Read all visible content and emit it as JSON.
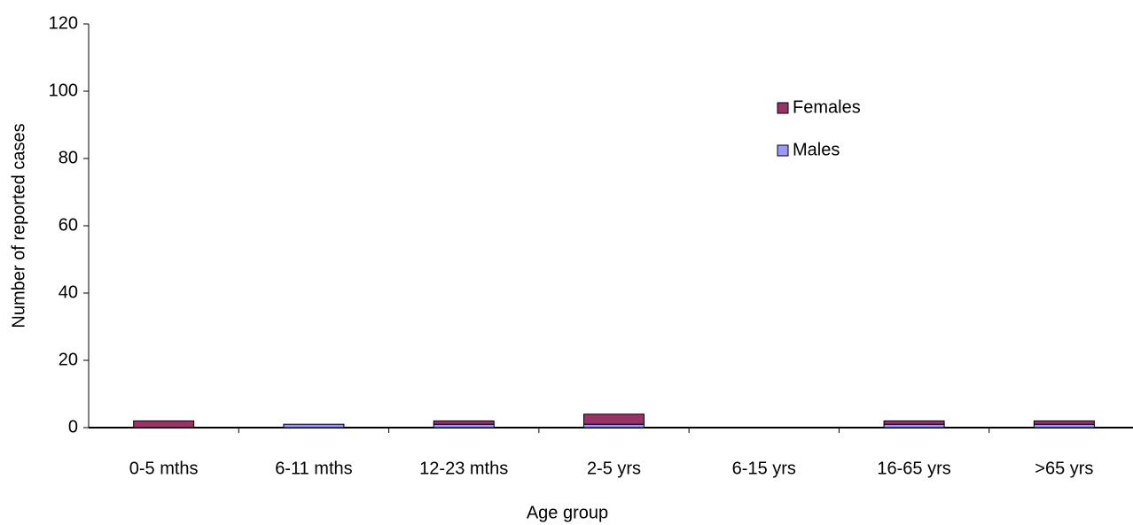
{
  "chart_data": {
    "type": "stacked_bar",
    "x_label": "Age group",
    "y_label": "Number of reported cases",
    "categories": [
      "0-5 mths",
      "6-11 mths",
      "12-23 mths",
      "2-5 yrs",
      "6-15 yrs",
      "16-65 yrs",
      ">65 yrs"
    ],
    "series": [
      {
        "name": "Males",
        "color": "#9999ff",
        "values": [
          0,
          1,
          1,
          1,
          0,
          1,
          1
        ]
      },
      {
        "name": "Females",
        "color": "#993366",
        "values": [
          2,
          0,
          1,
          3,
          0,
          1,
          1
        ]
      }
    ],
    "ylim": [
      0,
      120
    ],
    "yticks": [
      0,
      20,
      40,
      60,
      80,
      100,
      120
    ],
    "legend": "upper right"
  }
}
